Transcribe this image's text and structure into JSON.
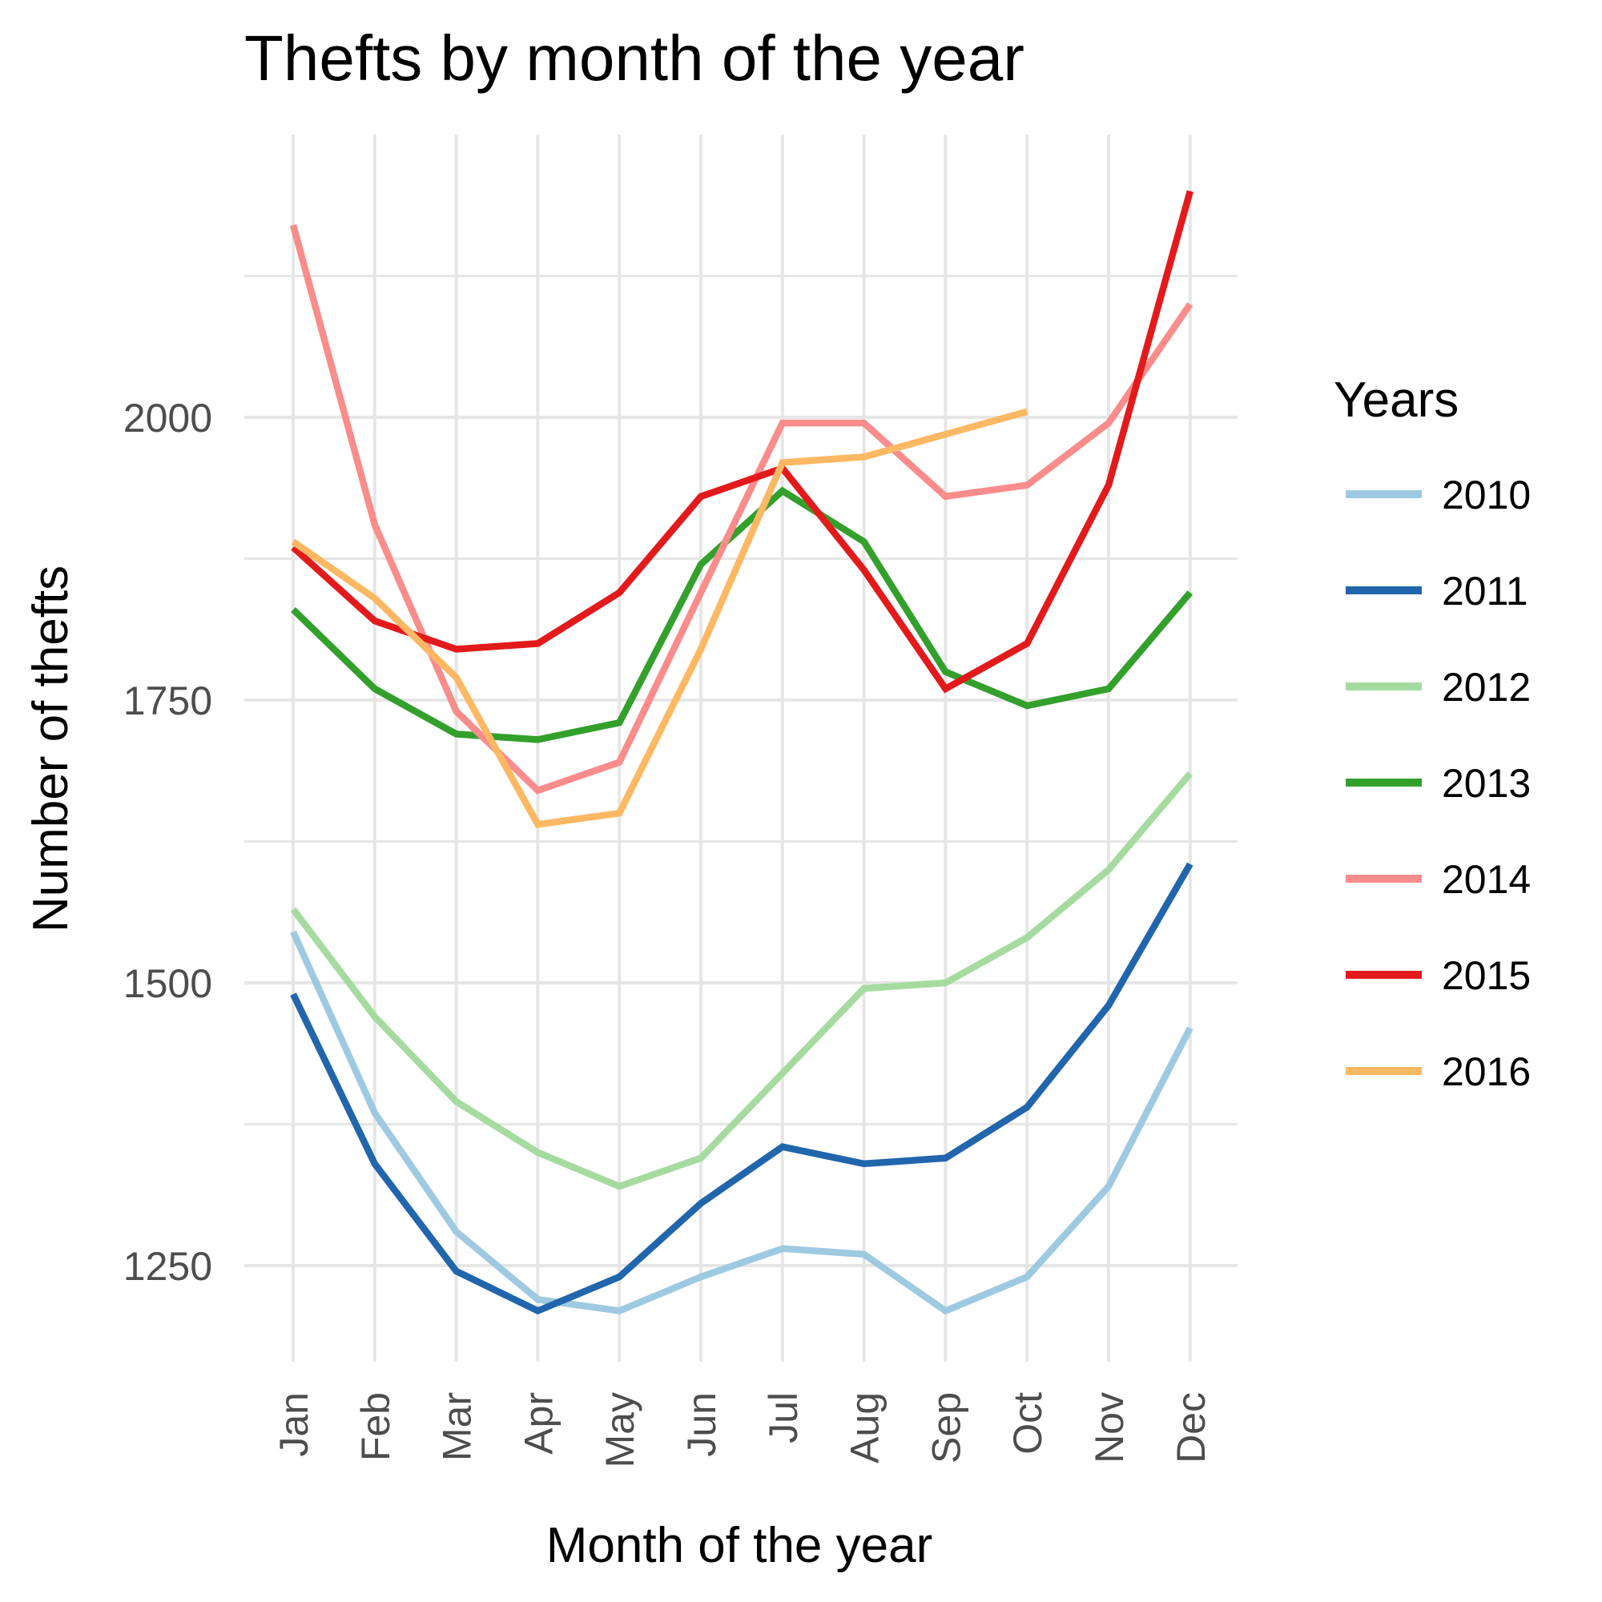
{
  "chart_data": {
    "type": "line",
    "title": "Thefts by month of the year",
    "xlabel": "Month of the year",
    "ylabel": "Number of thefts",
    "categories": [
      "Jan",
      "Feb",
      "Mar",
      "Apr",
      "May",
      "Jun",
      "Jul",
      "Aug",
      "Sep",
      "Oct",
      "Nov",
      "Dec"
    ],
    "yticks": [
      1250,
      1500,
      1750,
      2000
    ],
    "ylim": [
      1165,
      2250
    ],
    "grid": true,
    "legend": {
      "title": "Years",
      "position": "right"
    },
    "series": [
      {
        "name": "2010",
        "color": "#9ecae1",
        "values": [
          1545,
          1385,
          1280,
          1220,
          1210,
          1240,
          1265,
          1260,
          1210,
          1240,
          1320,
          1460
        ]
      },
      {
        "name": "2011",
        "color": "#2166ac",
        "values": [
          1490,
          1340,
          1245,
          1210,
          1240,
          1305,
          1355,
          1340,
          1345,
          1390,
          1480,
          1605
        ]
      },
      {
        "name": "2012",
        "color": "#a6dba0",
        "values": [
          1565,
          1470,
          1395,
          1350,
          1320,
          1345,
          1420,
          1495,
          1500,
          1540,
          1600,
          1685
        ]
      },
      {
        "name": "2013",
        "color": "#33a02c",
        "values": [
          1830,
          1760,
          1720,
          1715,
          1730,
          1870,
          1935,
          1890,
          1775,
          1745,
          1760,
          1845
        ]
      },
      {
        "name": "2014",
        "color": "#fb8c8c",
        "values": [
          2170,
          1905,
          1740,
          1670,
          1695,
          1845,
          1995,
          1995,
          1930,
          1940,
          1995,
          2100
        ]
      },
      {
        "name": "2015",
        "color": "#e31a1c",
        "values": [
          1885,
          1820,
          1795,
          1800,
          1845,
          1930,
          1955,
          1865,
          1760,
          1800,
          1940,
          2200
        ]
      },
      {
        "name": "2016",
        "color": "#fdb863",
        "values": [
          1890,
          1840,
          1770,
          1640,
          1650,
          1795,
          1960,
          1965,
          1985,
          2005,
          null,
          null
        ]
      }
    ]
  }
}
